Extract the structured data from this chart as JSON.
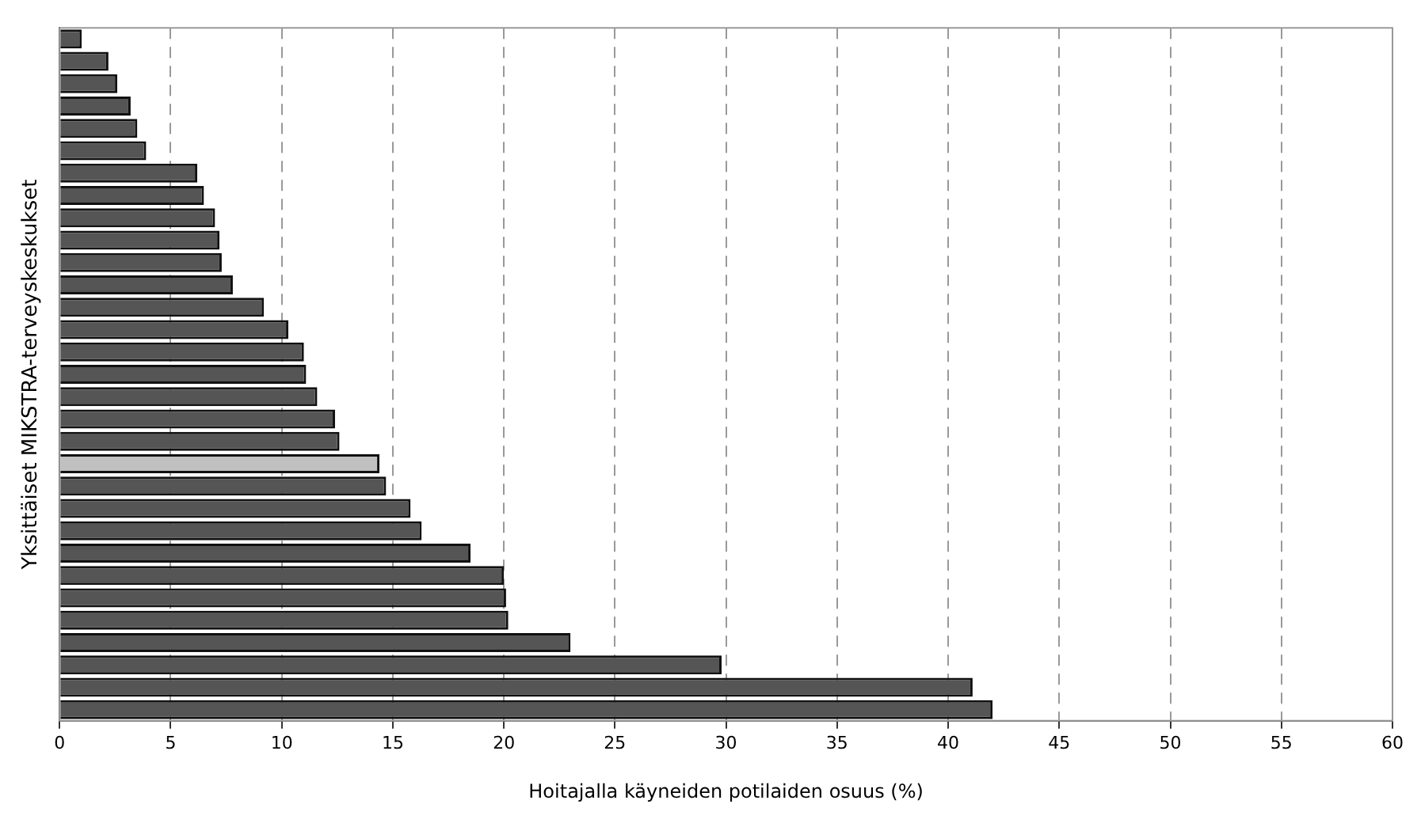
{
  "chart_data": {
    "type": "bar",
    "orientation": "horizontal",
    "xlabel": "Hoitajalla käyneiden potilaiden osuus (%)",
    "ylabel": "Yksittäiset MIKSTRA-terveyskeskukset",
    "categories": [
      null,
      null,
      null,
      null,
      null,
      null,
      null,
      null,
      null,
      null,
      null,
      null,
      null,
      null,
      null,
      null,
      null,
      null,
      null,
      null,
      null,
      null,
      null,
      null,
      null,
      null,
      null,
      null,
      null,
      null,
      null
    ],
    "values": [
      1.0,
      2.2,
      2.6,
      3.2,
      3.5,
      3.9,
      6.2,
      6.5,
      7.0,
      7.2,
      7.3,
      7.8,
      9.2,
      10.3,
      11.0,
      11.1,
      11.6,
      12.4,
      12.6,
      14.4,
      14.7,
      15.8,
      16.3,
      18.5,
      20.0,
      20.1,
      20.2,
      23.0,
      29.8,
      41.1,
      42.0
    ],
    "colors": [
      "#555555",
      "#555555",
      "#555555",
      "#555555",
      "#555555",
      "#555555",
      "#555555",
      "#555555",
      "#555555",
      "#555555",
      "#555555",
      "#555555",
      "#555555",
      "#555555",
      "#555555",
      "#555555",
      "#555555",
      "#555555",
      "#555555",
      "#c0c0c0",
      "#555555",
      "#555555",
      "#555555",
      "#555555",
      "#555555",
      "#555555",
      "#555555",
      "#555555",
      "#555555",
      "#555555",
      "#555555"
    ],
    "xlim": [
      0,
      60
    ],
    "xticks": [
      0,
      5,
      10,
      15,
      20,
      25,
      30,
      35,
      40,
      45,
      50,
      55,
      60
    ],
    "grid": "x",
    "legend": false
  }
}
